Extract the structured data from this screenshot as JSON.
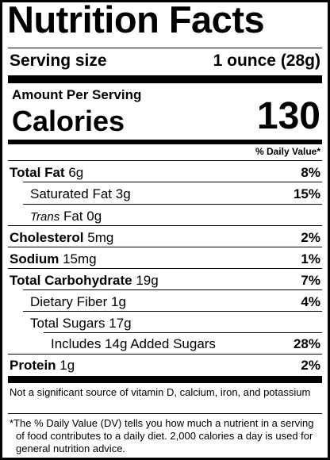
{
  "label": {
    "title": "Nutrition Facts",
    "serving_size_label": "Serving size",
    "serving_size_value": "1 ounce (28g)",
    "amount_per_serving": "Amount Per Serving",
    "calories_label": "Calories",
    "calories_value": "130",
    "daily_value_header": "% Daily Value*",
    "nutrients": [
      {
        "name": "Total Fat",
        "amount": "6g",
        "dv": "8%"
      },
      {
        "name": "Saturated Fat",
        "amount": "3g",
        "dv": "15%"
      },
      {
        "name_italic": "Trans",
        "name": "Fat",
        "amount": "0g",
        "dv": ""
      },
      {
        "name": "Cholesterol",
        "amount": "5mg",
        "dv": "2%"
      },
      {
        "name": "Sodium",
        "amount": "15mg",
        "dv": "1%"
      },
      {
        "name": "Total Carbohydrate",
        "amount": "19g",
        "dv": "7%"
      },
      {
        "name": "Dietary Fiber",
        "amount": "1g",
        "dv": "4%"
      },
      {
        "name": "Total Sugars",
        "amount": "17g",
        "dv": ""
      },
      {
        "name": "Includes 14g Added Sugars",
        "amount": "",
        "dv": "28%"
      },
      {
        "name": "Protein",
        "amount": "1g",
        "dv": "2%"
      }
    ],
    "not_significant": "Not a significant source of vitamin D, calcium, iron, and potassium",
    "footnote": "*The % Daily Value (DV) tells you how much a nutrient in a serving of food contributes to a daily diet. 2,000 calories a day is used for general nutrition advice."
  }
}
